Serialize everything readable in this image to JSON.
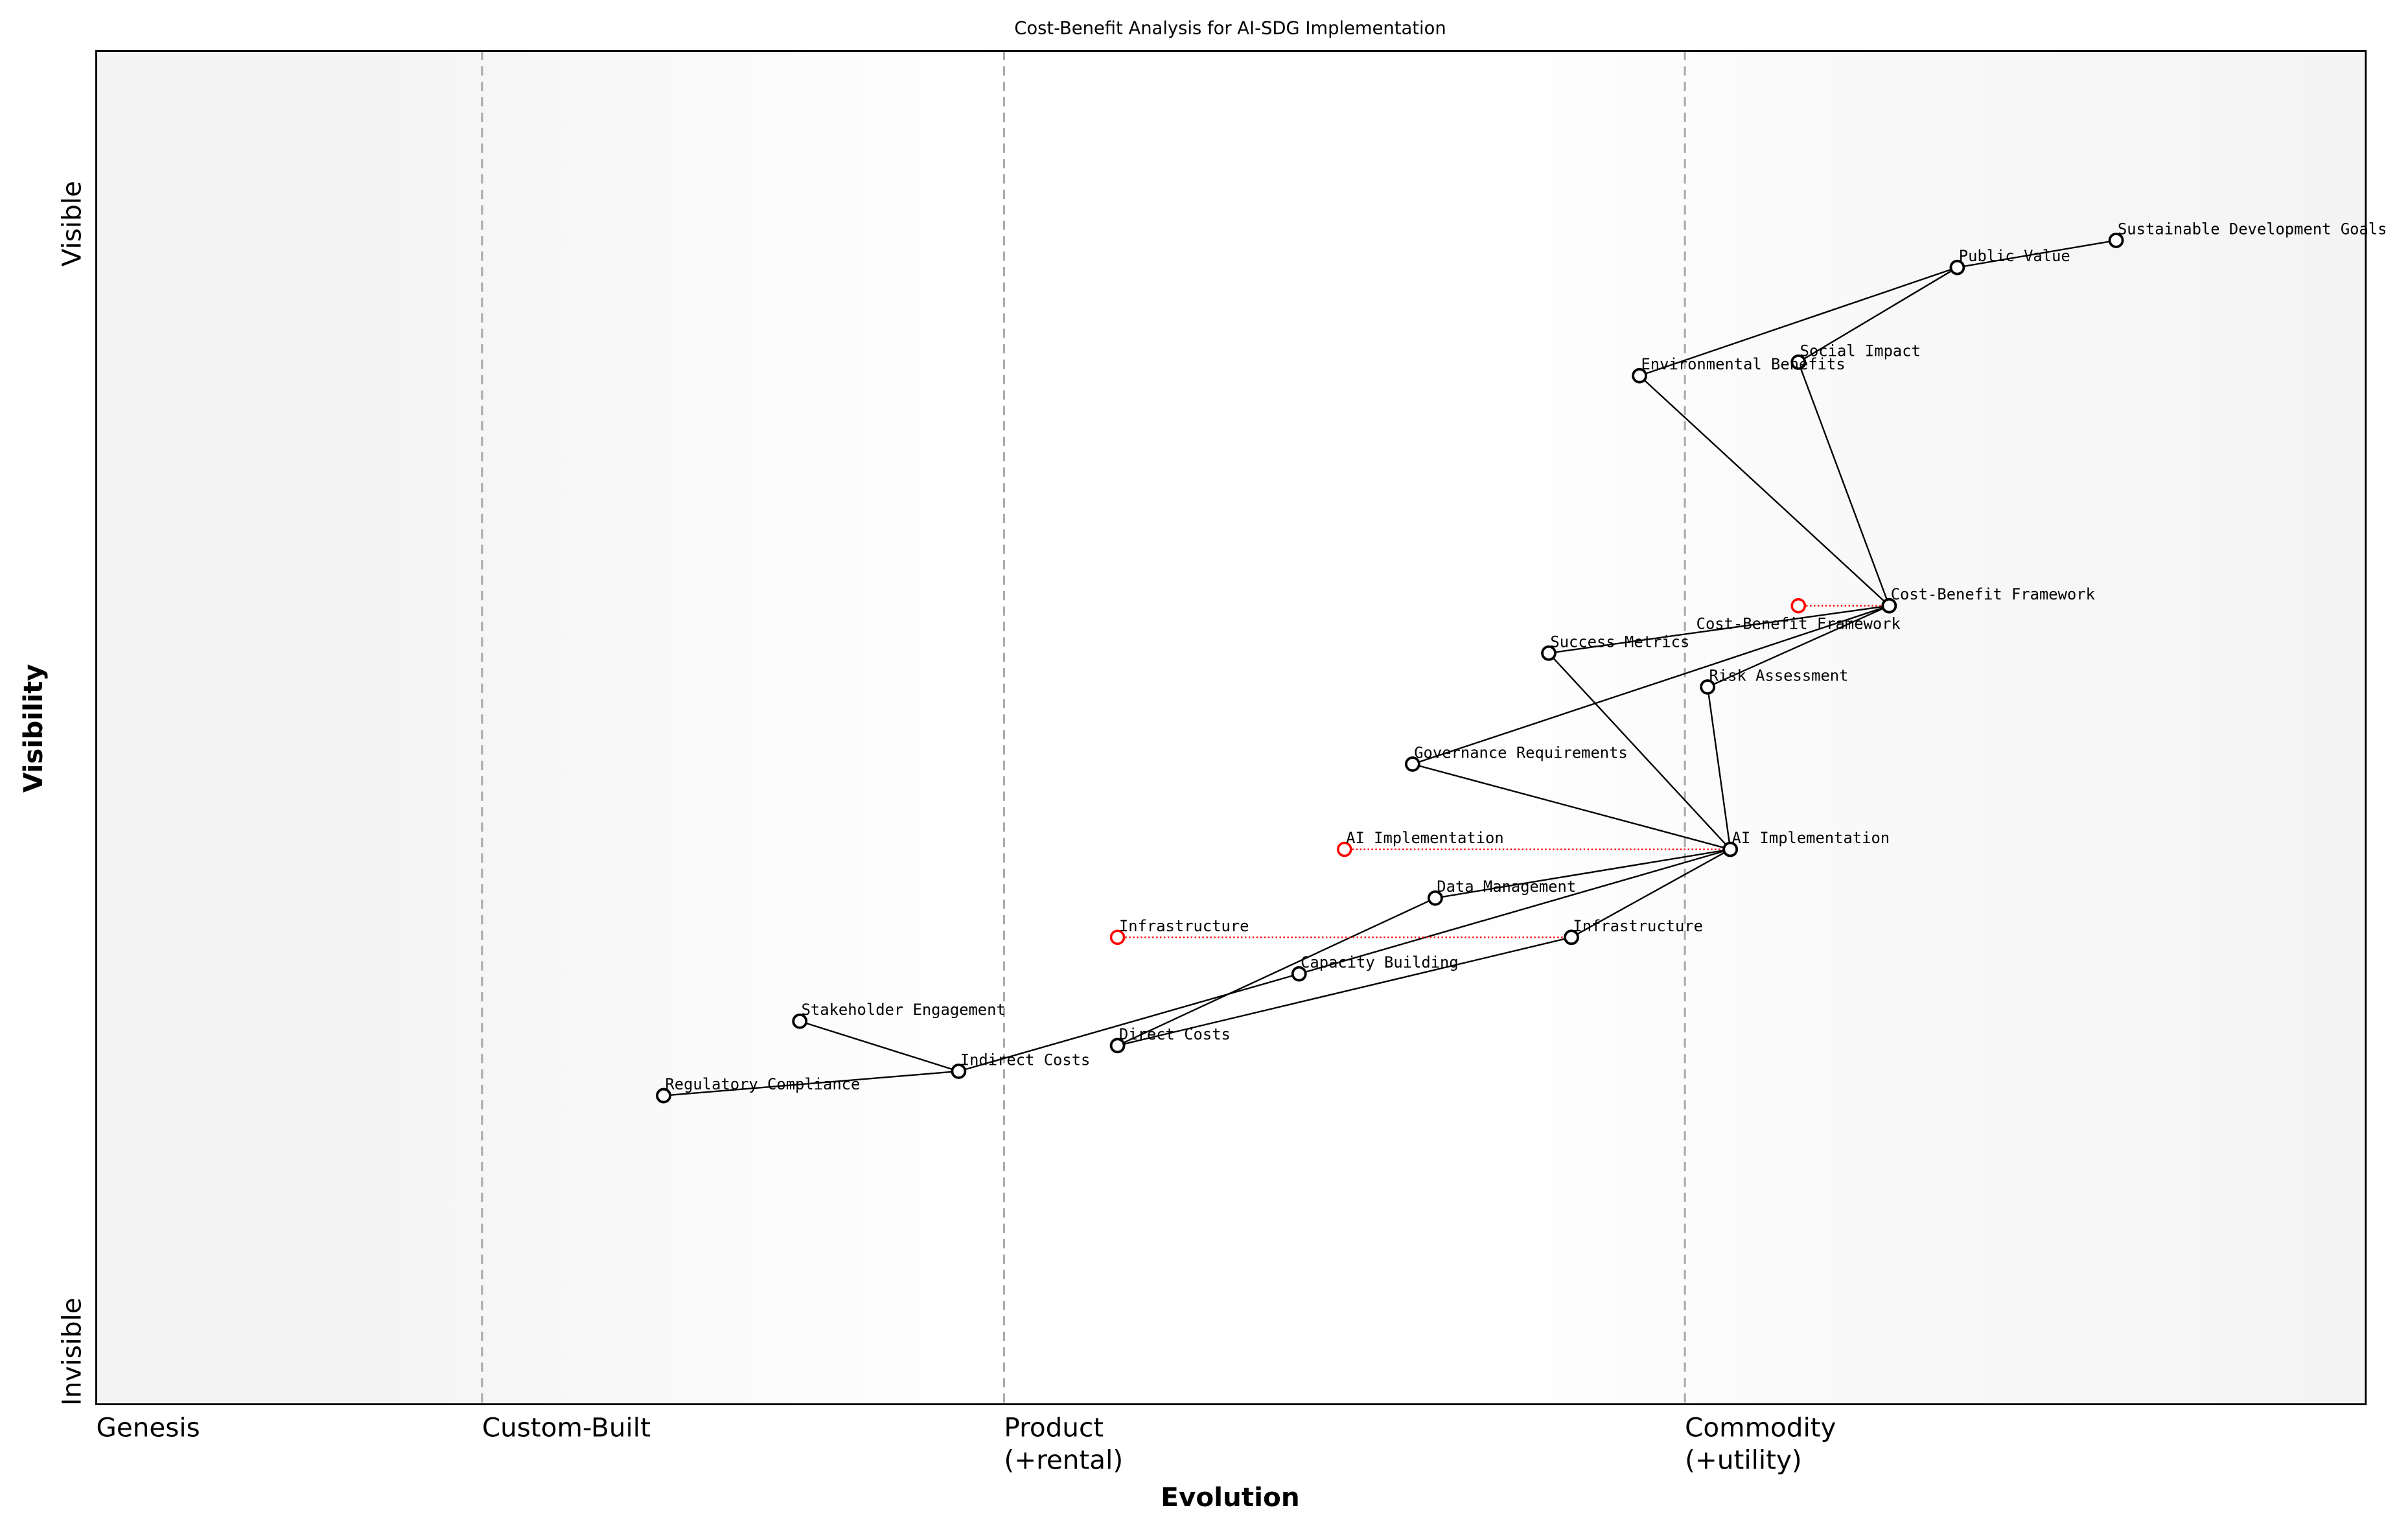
{
  "chart_data": {
    "type": "scatter",
    "subtype": "wardley-map",
    "title": "Cost-Benefit Analysis for AI-SDG Implementation",
    "xlabel": "Evolution",
    "ylabel": "Visibility",
    "xlim": [
      0,
      1
    ],
    "ylim": [
      0,
      1
    ],
    "grid": false,
    "x_stages": [
      {
        "label": "Genesis",
        "x": 0.0
      },
      {
        "label": "Custom-Built",
        "x": 0.17
      },
      {
        "label": "Product\n(+rental)",
        "x": 0.4
      },
      {
        "label": "Commodity\n(+utility)",
        "x": 0.7
      }
    ],
    "y_labels": {
      "top": "Visible",
      "bottom": "Invisible"
    },
    "colors": {
      "node": "#000000",
      "evolved_from": "#ff0000",
      "stage_line": "#aaaaaa",
      "edge_band": "#f5f5f5"
    },
    "nodes": [
      {
        "id": "sdg",
        "label": "Sustainable Development Goals",
        "x": 0.89,
        "y": 0.86
      },
      {
        "id": "pv",
        "label": "Public Value",
        "x": 0.82,
        "y": 0.84
      },
      {
        "id": "si",
        "label": "Social Impact",
        "x": 0.75,
        "y": 0.77
      },
      {
        "id": "eb",
        "label": "Environmental Benefits",
        "x": 0.68,
        "y": 0.76
      },
      {
        "id": "cbf",
        "label": "Cost-Benefit Framework",
        "x": 0.79,
        "y": 0.59
      },
      {
        "id": "sm",
        "label": "Success Metrics",
        "x": 0.64,
        "y": 0.555
      },
      {
        "id": "ra",
        "label": "Risk Assessment",
        "x": 0.71,
        "y": 0.53
      },
      {
        "id": "gr",
        "label": "Governance Requirements",
        "x": 0.58,
        "y": 0.473
      },
      {
        "id": "ai",
        "label": "AI Implementation",
        "x": 0.72,
        "y": 0.41
      },
      {
        "id": "dm",
        "label": "Data Management",
        "x": 0.59,
        "y": 0.374
      },
      {
        "id": "inf",
        "label": "Infrastructure",
        "x": 0.65,
        "y": 0.345
      },
      {
        "id": "cb",
        "label": "Capacity Building",
        "x": 0.53,
        "y": 0.318
      },
      {
        "id": "se",
        "label": "Stakeholder Engagement",
        "x": 0.31,
        "y": 0.283
      },
      {
        "id": "dc",
        "label": "Direct Costs",
        "x": 0.45,
        "y": 0.265
      },
      {
        "id": "ic",
        "label": "Indirect Costs",
        "x": 0.38,
        "y": 0.246
      },
      {
        "id": "rc",
        "label": "Regulatory Compliance",
        "x": 0.25,
        "y": 0.228
      }
    ],
    "evolutions": [
      {
        "label": "Cost-Benefit Framework",
        "from_x": 0.75,
        "to_x": 0.79,
        "y": 0.59
      },
      {
        "label": "AI Implementation",
        "from_x": 0.55,
        "to_x": 0.72,
        "y": 0.41
      },
      {
        "label": "Infrastructure",
        "from_x": 0.45,
        "to_x": 0.65,
        "y": 0.345
      }
    ],
    "edges": [
      [
        "sdg",
        "pv"
      ],
      [
        "pv",
        "eb"
      ],
      [
        "pv",
        "si"
      ],
      [
        "eb",
        "cbf"
      ],
      [
        "si",
        "cbf"
      ],
      [
        "cbf",
        "sm"
      ],
      [
        "cbf",
        "ra"
      ],
      [
        "cbf",
        "gr"
      ],
      [
        "sm",
        "ai"
      ],
      [
        "ra",
        "ai"
      ],
      [
        "gr",
        "ai"
      ],
      [
        "ai",
        "dm"
      ],
      [
        "ai",
        "cb"
      ],
      [
        "ai",
        "inf"
      ],
      [
        "dm",
        "dc"
      ],
      [
        "inf",
        "dc"
      ],
      [
        "cb",
        "ic"
      ],
      [
        "se",
        "ic"
      ],
      [
        "rc",
        "ic"
      ]
    ]
  }
}
